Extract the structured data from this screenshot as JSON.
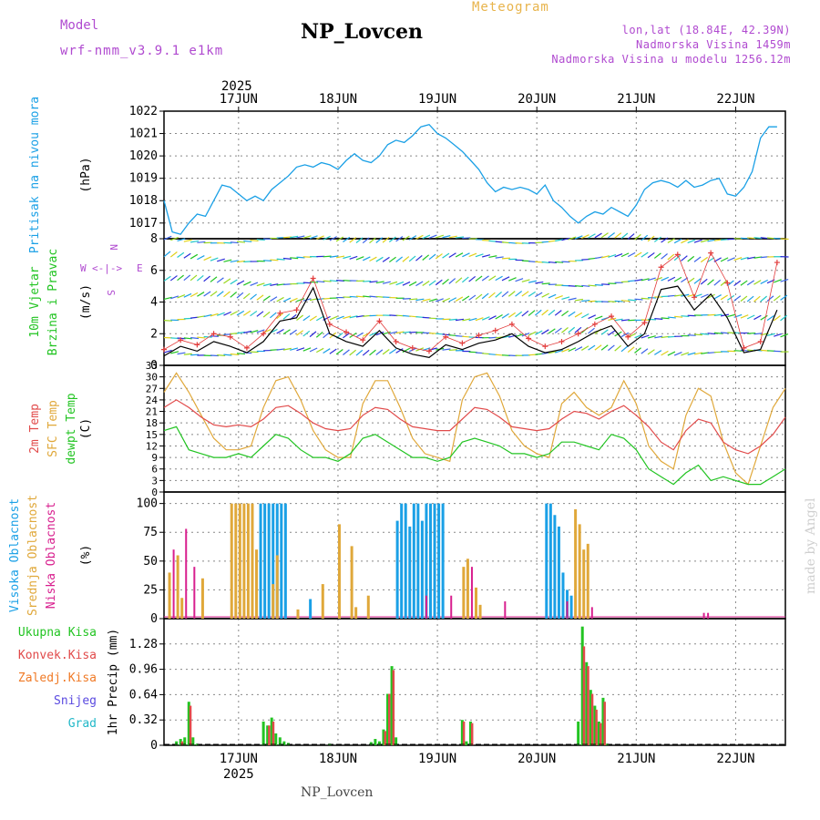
{
  "header": {
    "title": "NP_Lovcen",
    "subtitle": "Meteogram",
    "model_label": "Model",
    "model_name": "wrf-nmm_v3.9.1 e1km",
    "location_lines": [
      "lon,lat (18.84E, 42.39N)",
      "Nadmorska Visina 1459m",
      "Nadmorska Visina u modelu 1256.12m"
    ]
  },
  "footer": {
    "station": "NP_Lovcen",
    "credit": "made by Angel"
  },
  "colors": {
    "pressure": "#1aa0e6",
    "speed": "#000000",
    "gust": "#e23b3b",
    "temp2m": "#e14a4a",
    "sfc": "#e0a83a",
    "dewpt": "#22c422",
    "high_cloud": "#1aa0e6",
    "mid_cloud": "#e0a83a",
    "low_cloud": "#d81f8e",
    "total_precip": "#22c422",
    "conv_precip": "#e14a4a",
    "frozen_precip": "#f07a26",
    "snow": "#5a4ae0",
    "grad": "#22b8c8",
    "grid": "#888888"
  },
  "chart_data": [
    {
      "type": "line",
      "panel": "pressure",
      "title": "",
      "xlabel": "",
      "ylabel": "(hPa)",
      "side_labels": [
        {
          "text": "Pritisak na nivou mora",
          "color": "#1aa0e6"
        }
      ],
      "x_top_ticks": [
        "17JUN",
        "18JUN",
        "19JUN",
        "20JUN",
        "21JUN",
        "22JUN"
      ],
      "x_top_year": "2025",
      "ylim": [
        1016.3,
        1022.0
      ],
      "yticks": [
        1017,
        1018,
        1019,
        1020,
        1021,
        1022
      ],
      "x_hours": [
        0,
        2,
        4,
        6,
        8,
        10,
        12,
        14,
        16,
        18,
        20,
        22,
        24,
        26,
        28,
        30,
        32,
        34,
        36,
        38,
        40,
        42,
        44,
        46,
        48,
        50,
        52,
        54,
        56,
        58,
        60,
        62,
        64,
        66,
        68,
        70,
        72,
        74,
        76,
        78,
        80,
        82,
        84,
        86,
        88,
        90,
        92,
        94,
        96,
        98,
        100,
        102,
        104,
        106,
        108,
        110,
        112,
        114,
        116,
        118,
        120,
        122,
        124,
        126,
        128,
        130,
        132,
        134,
        136,
        138,
        140,
        142,
        144,
        146,
        148
      ],
      "series": [
        {
          "values": [
            1018.0,
            1016.6,
            1016.5,
            1017.0,
            1017.4,
            1017.3,
            1018.0,
            1018.7,
            1018.6,
            1018.3,
            1018.0,
            1018.2,
            1018.0,
            1018.5,
            1018.8,
            1019.1,
            1019.5,
            1019.6,
            1019.5,
            1019.7,
            1019.6,
            1019.4,
            1019.8,
            1020.1,
            1019.8,
            1019.7,
            1020.0,
            1020.5,
            1020.7,
            1020.6,
            1020.9,
            1021.3,
            1021.4,
            1021.0,
            1020.8,
            1020.5,
            1020.2,
            1019.8,
            1019.4,
            1018.8,
            1018.4,
            1018.6,
            1018.5,
            1018.6,
            1018.5,
            1018.3,
            1018.7,
            1018.0,
            1017.7,
            1017.3,
            1017.0,
            1017.3,
            1017.5,
            1017.4,
            1017.7,
            1017.5,
            1017.3,
            1017.8,
            1018.5,
            1018.8,
            1018.9,
            1018.8,
            1018.6,
            1018.9,
            1018.6,
            1018.7,
            1018.9,
            1019.0,
            1018.3,
            1018.2,
            1018.6,
            1019.3,
            1020.8,
            1021.3,
            1021.3
          ]
        }
      ]
    },
    {
      "type": "line",
      "panel": "wind",
      "title": "",
      "xlabel": "",
      "ylabel": "(m/s)",
      "side_labels": [
        {
          "text": "10m Vjetar",
          "color": "#22c422"
        },
        {
          "text": "Brzina i Pravac",
          "color": "#22c422"
        }
      ],
      "compass": {
        "n": "N",
        "s": "S",
        "e": "E",
        "w": "W",
        "arrows": "<-|->"
      },
      "ylim": [
        0,
        8
      ],
      "yticks": [
        0,
        2,
        4,
        6,
        8
      ],
      "x_hours": [
        0,
        4,
        8,
        12,
        16,
        20,
        24,
        28,
        32,
        36,
        40,
        44,
        48,
        52,
        56,
        60,
        64,
        68,
        72,
        76,
        80,
        84,
        88,
        92,
        96,
        100,
        104,
        108,
        112,
        116,
        120,
        124,
        128,
        132,
        136,
        140,
        144,
        148
      ],
      "series": [
        {
          "values": [
            0.6,
            1.2,
            0.9,
            1.5,
            1.2,
            0.8,
            1.5,
            2.8,
            3.0,
            4.9,
            2.0,
            1.5,
            1.2,
            2.2,
            1.1,
            0.7,
            0.5,
            1.3,
            1.0,
            1.4,
            1.6,
            2.0,
            1.2,
            0.8,
            1.0,
            1.5,
            2.1,
            2.5,
            1.2,
            2.0,
            4.8,
            5.0,
            3.5,
            4.5,
            3.0,
            0.8,
            1.0,
            3.5
          ]
        },
        {
          "values": [
            1.0,
            1.6,
            1.3,
            2.0,
            1.8,
            1.1,
            2.0,
            3.3,
            3.5,
            5.5,
            2.6,
            2.1,
            1.6,
            2.8,
            1.5,
            1.1,
            0.9,
            1.8,
            1.4,
            1.9,
            2.2,
            2.6,
            1.7,
            1.2,
            1.5,
            2.0,
            2.6,
            3.1,
            1.8,
            2.7,
            6.2,
            7.0,
            4.3,
            7.1,
            5.2,
            1.1,
            1.5,
            6.5
          ]
        }
      ]
    },
    {
      "type": "line",
      "panel": "temperature",
      "title": "",
      "xlabel": "",
      "ylabel": "(C)",
      "side_labels": [
        {
          "text": "2m Temp",
          "color": "#e14a4a"
        },
        {
          "text": "SFC Temp",
          "color": "#e0a83a"
        },
        {
          "text": "dewpt Temp",
          "color": "#22c422"
        }
      ],
      "ylim": [
        0,
        33
      ],
      "yticks": [
        0,
        3,
        6,
        9,
        12,
        15,
        18,
        21,
        24,
        27,
        30,
        33
      ],
      "x_hours": [
        0,
        3,
        6,
        9,
        12,
        15,
        18,
        21,
        24,
        27,
        30,
        33,
        36,
        39,
        42,
        45,
        48,
        51,
        54,
        57,
        60,
        63,
        66,
        69,
        72,
        75,
        78,
        81,
        84,
        87,
        90,
        93,
        96,
        99,
        102,
        105,
        108,
        111,
        114,
        117,
        120,
        123,
        126,
        129,
        132,
        135,
        138,
        141,
        144,
        147,
        150
      ],
      "series": [
        {
          "values": [
            22.0,
            24.0,
            22.0,
            19.5,
            17.5,
            17.0,
            17.5,
            17.0,
            19.0,
            22.0,
            22.5,
            20.5,
            18.0,
            16.5,
            16.0,
            16.5,
            20.0,
            22.0,
            21.5,
            19.0,
            17.0,
            16.5,
            16.0,
            16.0,
            19.0,
            22.0,
            21.5,
            19.5,
            17.0,
            16.5,
            16.0,
            16.5,
            19.0,
            21.0,
            20.5,
            19.0,
            21.0,
            22.5,
            20.0,
            17.0,
            13.0,
            11.0,
            16.0,
            19.0,
            18.0,
            13.0,
            11.0,
            10.0,
            12.0,
            15.0,
            19.5
          ]
        },
        {
          "values": [
            26.0,
            31.0,
            26.0,
            20.0,
            14.0,
            11.0,
            11.0,
            12.0,
            22.0,
            29.0,
            30.0,
            24.0,
            16.0,
            11.0,
            9.0,
            9.0,
            23.0,
            29.0,
            29.0,
            22.0,
            14.0,
            10.0,
            9.0,
            8.0,
            24.0,
            30.0,
            31.0,
            25.0,
            16.0,
            12.0,
            10.0,
            9.0,
            23.0,
            26.0,
            22.0,
            20.0,
            22.0,
            29.0,
            23.0,
            12.0,
            8.0,
            6.0,
            20.0,
            27.0,
            25.0,
            13.0,
            5.0,
            2.0,
            12.0,
            22.0,
            27.0
          ]
        },
        {
          "values": [
            16.0,
            17.0,
            11.0,
            10.0,
            9.0,
            9.0,
            10.0,
            9.0,
            12.0,
            15.0,
            14.0,
            11.0,
            9.0,
            9.0,
            8.0,
            10.0,
            14.0,
            15.0,
            13.0,
            11.0,
            9.0,
            9.0,
            8.0,
            9.0,
            13.0,
            14.0,
            13.0,
            12.0,
            10.0,
            10.0,
            9.0,
            10.0,
            13.0,
            13.0,
            12.0,
            11.0,
            15.0,
            14.0,
            11.0,
            6.0,
            4.0,
            2.0,
            5.0,
            7.0,
            3.0,
            4.0,
            3.0,
            2.0,
            2.0,
            4.0,
            6.0
          ]
        }
      ]
    },
    {
      "type": "bar",
      "panel": "cloud",
      "title": "",
      "xlabel": "",
      "ylabel": "(%)",
      "side_labels": [
        {
          "text": "Visoka Oblacnost",
          "color": "#1aa0e6"
        },
        {
          "text": "Srednja Oblacnost",
          "color": "#e0a83a"
        },
        {
          "text": "Niska Oblacnost",
          "color": "#d81f8e"
        }
      ],
      "ylim": [
        0,
        110
      ],
      "yticks": [
        0,
        25,
        50,
        75,
        100
      ],
      "series": [
        {
          "name": "high",
          "x": [
            23,
            24,
            25,
            26,
            27,
            28,
            29,
            35,
            56,
            57,
            58,
            59,
            60,
            61,
            62,
            63,
            64,
            65,
            66,
            67,
            92,
            93,
            94,
            95,
            96,
            97,
            98
          ],
          "values": [
            100,
            100,
            100,
            100,
            100,
            100,
            100,
            17,
            85,
            100,
            100,
            80,
            100,
            100,
            85,
            100,
            100,
            100,
            100,
            100,
            100,
            100,
            90,
            80,
            40,
            25,
            20
          ]
        },
        {
          "name": "mid",
          "x": [
            1,
            3,
            4,
            9,
            16,
            17,
            18,
            19,
            20,
            21,
            22,
            26,
            27,
            32,
            38,
            42,
            45,
            46,
            49,
            72,
            73,
            75,
            76,
            99,
            100,
            101,
            102
          ],
          "values": [
            40,
            55,
            18,
            35,
            100,
            100,
            100,
            100,
            100,
            100,
            60,
            30,
            55,
            8,
            30,
            82,
            63,
            10,
            20,
            45,
            52,
            27,
            12,
            95,
            82,
            60,
            65
          ]
        },
        {
          "name": "low",
          "x": [
            2,
            5,
            7,
            63,
            69,
            74,
            82,
            97,
            103,
            130,
            131
          ],
          "values": [
            60,
            78,
            45,
            20,
            20,
            45,
            15,
            15,
            10,
            5,
            5
          ]
        }
      ]
    },
    {
      "type": "bar",
      "panel": "precip",
      "title": "",
      "xlabel": "",
      "ylabel": "1hr Precip (mm)",
      "side_labels": [
        {
          "text": "Ukupna Kisa",
          "color": "#22c422"
        },
        {
          "text": "Konvek.Kisa",
          "color": "#e14a4a"
        },
        {
          "text": "Zaledj.Kisa",
          "color": "#f07a26"
        },
        {
          "text": "Snijeg",
          "color": "#5a4ae0"
        },
        {
          "text": "Grad",
          "color": "#22b8c8"
        }
      ],
      "x_bottom_ticks": [
        "17JUN",
        "18JUN",
        "19JUN",
        "20JUN",
        "21JUN",
        "22JUN"
      ],
      "x_bottom_year": "2025",
      "ylim": [
        0,
        1.6
      ],
      "yticks": [
        0,
        0.32,
        0.64,
        0.96,
        1.28
      ],
      "ytick_labels": [
        "0",
        "0.32",
        "0.64",
        "0.96",
        "1.28"
      ],
      "series": [
        {
          "name": "total",
          "x": [
            3,
            4,
            5,
            6,
            7,
            8,
            24,
            25,
            26,
            27,
            28,
            29,
            30,
            40,
            50,
            51,
            52,
            53,
            54,
            55,
            56,
            72,
            73,
            74,
            100,
            101,
            102,
            103,
            104,
            105,
            106,
            107
          ],
          "values": [
            0.05,
            0.08,
            0.1,
            0.55,
            0.1,
            0.02,
            0.3,
            0.25,
            0.35,
            0.15,
            0.1,
            0.05,
            0.03,
            0.02,
            0.04,
            0.08,
            0.05,
            0.2,
            0.65,
            1.0,
            0.1,
            0.32,
            0.05,
            0.3,
            0.3,
            1.5,
            1.05,
            0.7,
            0.5,
            0.3,
            0.6,
            0.02
          ]
        },
        {
          "name": "convective",
          "x": [
            4,
            6,
            25,
            26,
            53,
            54,
            55,
            72,
            74,
            101,
            102,
            103,
            104,
            105,
            106
          ],
          "values": [
            0.05,
            0.5,
            0.25,
            0.3,
            0.18,
            0.65,
            0.95,
            0.3,
            0.28,
            1.25,
            1.0,
            0.65,
            0.45,
            0.28,
            0.55
          ]
        }
      ]
    }
  ]
}
